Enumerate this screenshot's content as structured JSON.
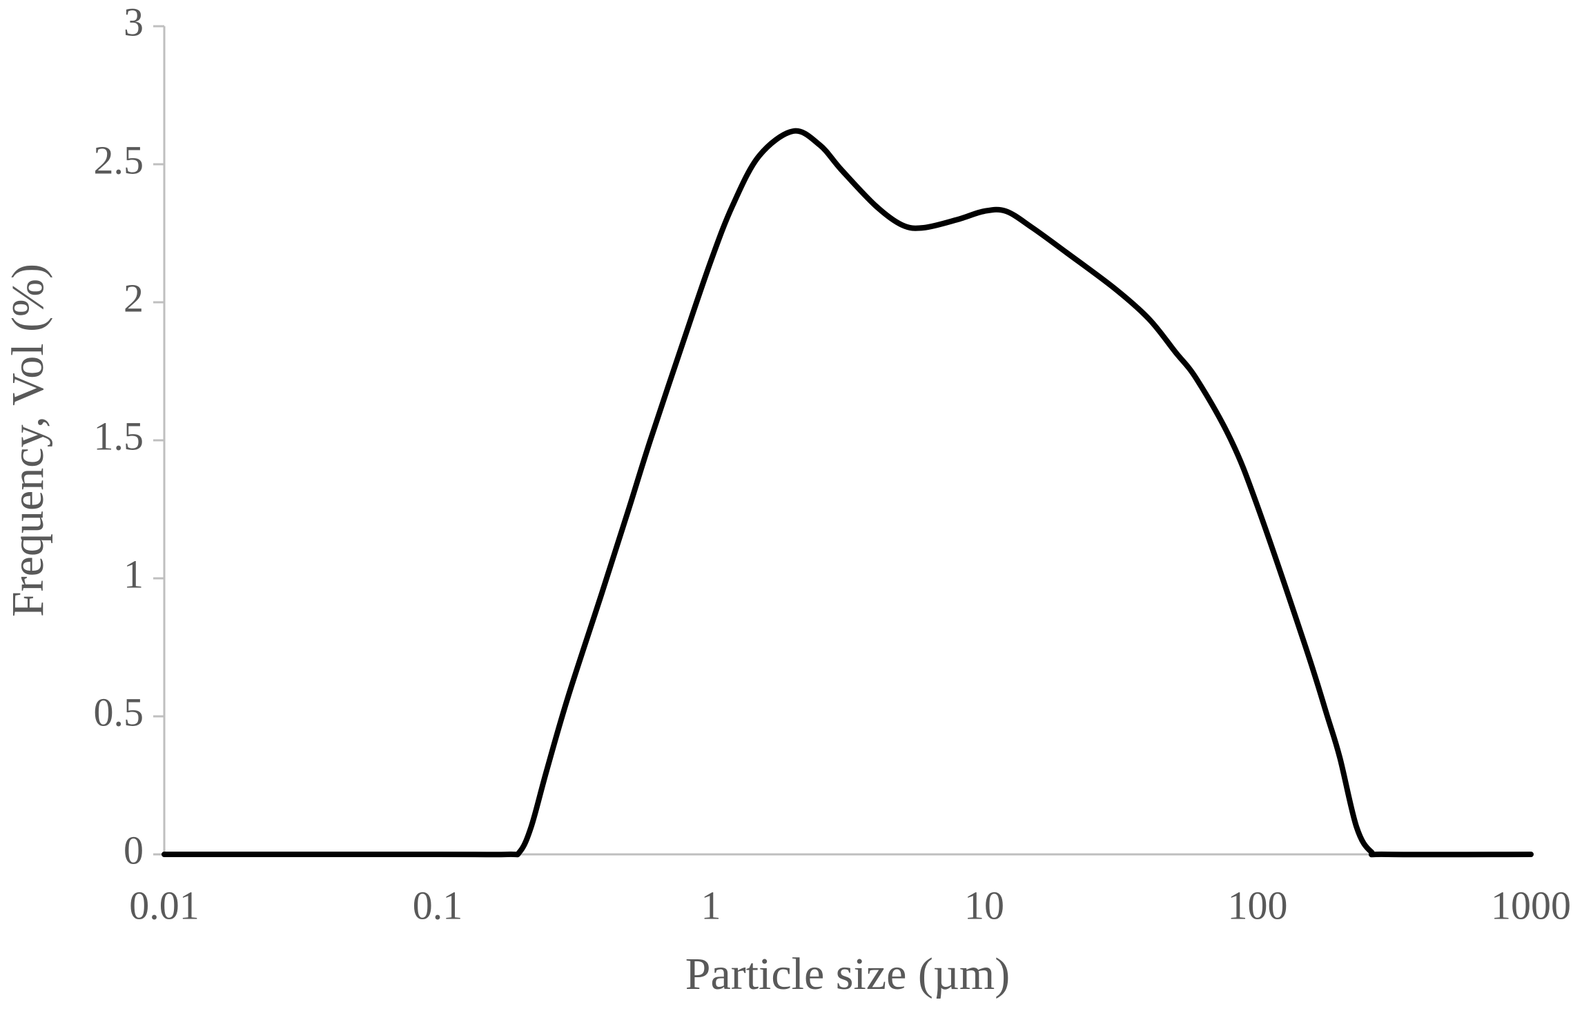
{
  "chart_data": {
    "type": "line",
    "x_label": "Particle size (µm)",
    "y_label": "Frequency, Vol (%)",
    "x_scale": "log",
    "xlim": [
      0.01,
      1000
    ],
    "xticks": [
      0.01,
      0.1,
      1,
      10,
      100,
      1000
    ],
    "ylim": [
      0,
      3
    ],
    "yticks": [
      0,
      0.5,
      1,
      1.5,
      2,
      2.5,
      3
    ],
    "series": [
      {
        "color": "#000000",
        "x": [
          0.01,
          0.1,
          0.18,
          0.2,
          0.22,
          0.25,
          0.3,
          0.4,
          0.5,
          0.6,
          0.8,
          1,
          1.2,
          1.5,
          2,
          2.5,
          3,
          4,
          5,
          6,
          8,
          10,
          12,
          15,
          20,
          30,
          40,
          50,
          60,
          80,
          100,
          150,
          180,
          200,
          230,
          260,
          300,
          1000
        ],
        "values": [
          0,
          0,
          0,
          0.01,
          0.1,
          0.3,
          0.57,
          0.95,
          1.25,
          1.5,
          1.87,
          2.15,
          2.35,
          2.53,
          2.62,
          2.57,
          2.48,
          2.35,
          2.28,
          2.27,
          2.3,
          2.33,
          2.33,
          2.27,
          2.18,
          2.05,
          1.94,
          1.82,
          1.72,
          1.5,
          1.26,
          0.75,
          0.5,
          0.35,
          0.1,
          0.01,
          0,
          0
        ]
      }
    ]
  }
}
